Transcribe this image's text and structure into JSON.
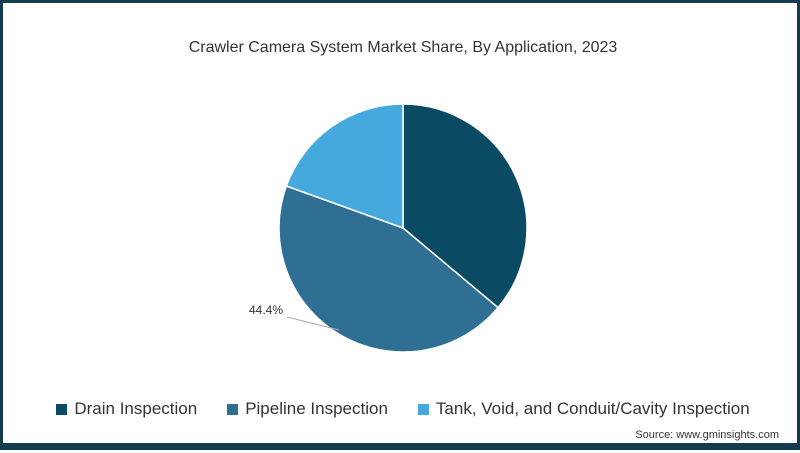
{
  "chart_data": {
    "type": "pie",
    "title": "Crawler Camera System Market  Share, By Application, 2023",
    "categories": [
      "Drain Inspection",
      "Pipeline Inspection",
      "Tank, Void, and Conduit/Cavity Inspection"
    ],
    "values": [
      36.1,
      44.4,
      19.5
    ],
    "colors": [
      "#0b4a63",
      "#2e6f93",
      "#46a9dd"
    ],
    "data_labels": [
      {
        "category": "Pipeline Inspection",
        "text": "44.4%"
      }
    ],
    "legend_position": "bottom",
    "start_angle_deg": 0,
    "direction": "clockwise"
  },
  "header": {
    "title": "Crawler Camera System Market  Share, By Application, 2023"
  },
  "legend": {
    "items": [
      {
        "label": "Drain Inspection",
        "color": "#0b4a63"
      },
      {
        "label": "Pipeline Inspection",
        "color": "#2e6f93"
      },
      {
        "label": "Tank, Void, and Conduit/Cavity Inspection",
        "color": "#46a9dd"
      }
    ]
  },
  "annotation": {
    "pipeline_label": "44.4%"
  },
  "footer": {
    "source": "Source: www.gminsights.com"
  }
}
